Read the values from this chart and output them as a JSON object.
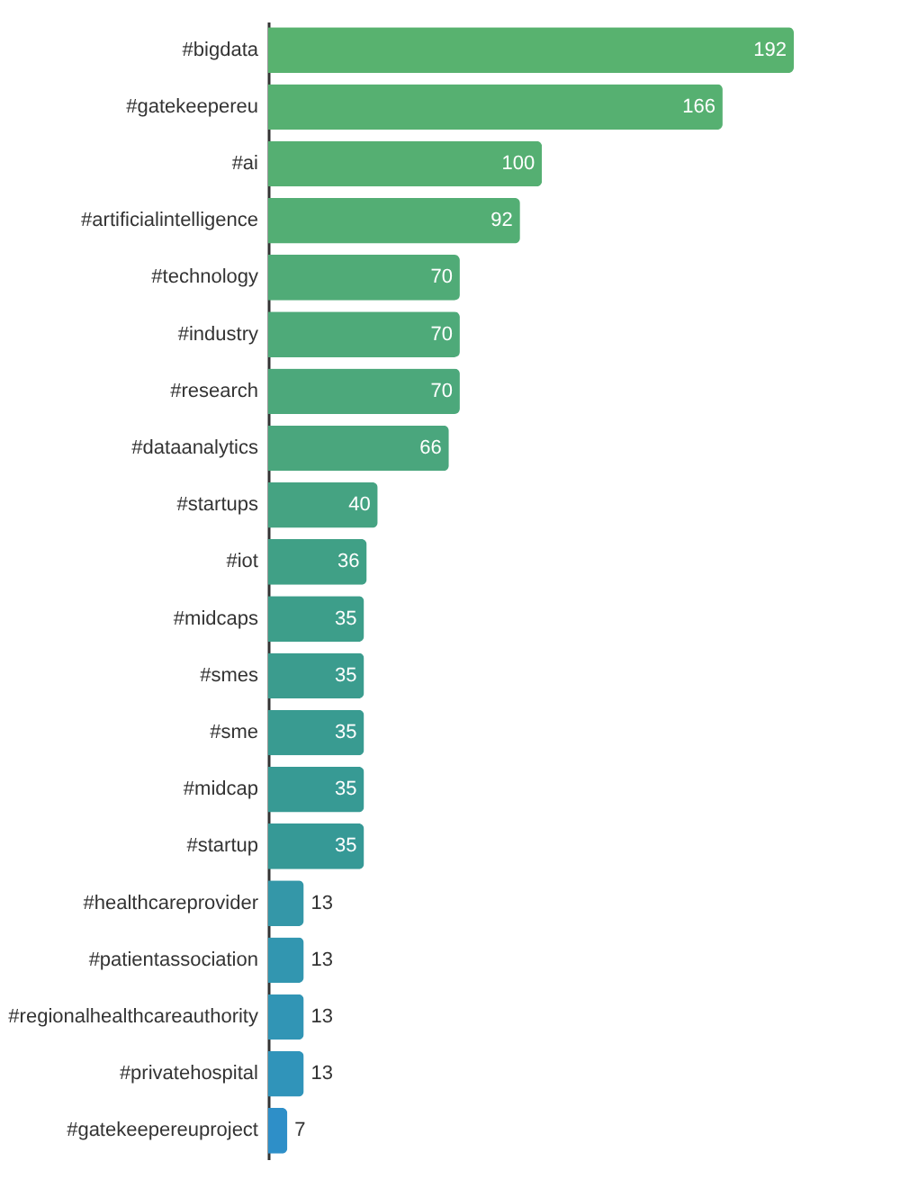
{
  "chart_data": {
    "type": "bar",
    "orientation": "horizontal",
    "data_labels": true,
    "grid": false,
    "categories": [
      "#bigdata",
      "#gatekeepereu",
      "#ai",
      "#artificialintelligence",
      "#technology",
      "#industry",
      "#research",
      "#dataanalytics",
      "#startups",
      "#iot",
      "#midcaps",
      "#smes",
      "#sme",
      "#midcap",
      "#startup",
      "#healthcareprovider",
      "#patientassociation",
      "#regionalhealthcareauthority",
      "#privatehospital",
      "#gatekeepereuproject"
    ],
    "values": [
      192,
      166,
      100,
      92,
      70,
      70,
      70,
      66,
      40,
      36,
      35,
      35,
      35,
      35,
      35,
      13,
      13,
      13,
      13,
      7
    ],
    "colors": [
      "#58b26f",
      "#56b071",
      "#55af72",
      "#53ae74",
      "#50ab77",
      "#4eaa79",
      "#4ca87b",
      "#4aa67d",
      "#45a382",
      "#40a086",
      "#3d9e8a",
      "#3b9c8e",
      "#399b91",
      "#379a94",
      "#369996",
      "#3497a8",
      "#3296b0",
      "#3195b5",
      "#3094ba",
      "#2e8fc8"
    ],
    "tick_labels": "y"
  }
}
